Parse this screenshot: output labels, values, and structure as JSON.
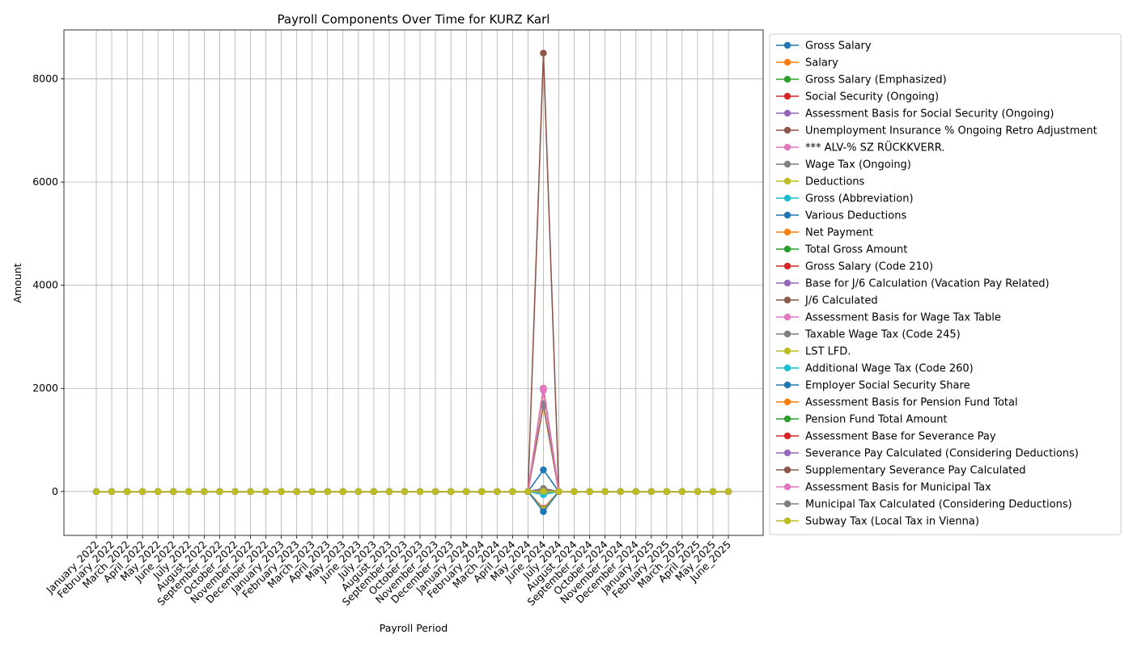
{
  "chart_data": {
    "type": "line",
    "title": "Payroll Components Over Time for KURZ Karl",
    "xlabel": "Payroll Period",
    "ylabel": "Amount",
    "ylim": [
      -850,
      8950
    ],
    "yticks": [
      0,
      2000,
      4000,
      6000,
      8000
    ],
    "grid": true,
    "legend_position": "outside-right",
    "categories": [
      "January_2022",
      "February_2022",
      "March_2022",
      "April_2022",
      "May_2022",
      "June_2022",
      "July_2022",
      "August_2022",
      "September_2022",
      "October_2022",
      "November_2022",
      "December_2022",
      "January_2023",
      "February_2023",
      "March_2023",
      "April_2023",
      "May_2023",
      "June_2023",
      "July_2023",
      "August_2023",
      "September_2023",
      "October_2023",
      "November_2023",
      "December_2023",
      "January_2024",
      "February_2024",
      "March_2024",
      "April_2024",
      "May_2024",
      "June_2024",
      "July_2024",
      "August_2024",
      "September_2024",
      "October_2024",
      "November_2024",
      "December_2024",
      "January_2025",
      "February_2025",
      "March_2025",
      "April_2025",
      "May_2025",
      "June_2025"
    ],
    "spike_category_index": 29,
    "series": [
      {
        "name": "Gross Salary",
        "color": "#1f77b4",
        "spike": 2000
      },
      {
        "name": "Salary",
        "color": "#ff7f0e",
        "spike": 2000
      },
      {
        "name": "Gross Salary (Emphasized)",
        "color": "#2ca02c",
        "spike": 2000
      },
      {
        "name": "Social Security (Ongoing)",
        "color": "#d62728",
        "spike": -330
      },
      {
        "name": "Assessment Basis for Social Security (Ongoing)",
        "color": "#9467bd",
        "spike": 2000
      },
      {
        "name": "Unemployment Insurance % Ongoing Retro Adjustment",
        "color": "#8c564b",
        "spike": 0
      },
      {
        "name": "*** ALV-% SZ RÜCKKVERR.",
        "color": "#e377c2",
        "spike": 0
      },
      {
        "name": "Wage Tax (Ongoing)",
        "color": "#7f7f7f",
        "spike": -20
      },
      {
        "name": "Deductions",
        "color": "#bcbd22",
        "spike": -350
      },
      {
        "name": "Gross (Abbreviation)",
        "color": "#17becf",
        "spike": 2000
      },
      {
        "name": "Various Deductions",
        "color": "#1f77b4",
        "spike": -390
      },
      {
        "name": "Net Payment",
        "color": "#ff7f0e",
        "spike": 1650
      },
      {
        "name": "Total Gross Amount",
        "color": "#2ca02c",
        "spike": 2000
      },
      {
        "name": "Gross Salary (Code 210)",
        "color": "#d62728",
        "spike": 2000
      },
      {
        "name": "Base for J/6 Calculation (Vacation Pay Related)",
        "color": "#9467bd",
        "spike": 2000
      },
      {
        "name": "J/6 Calculated",
        "color": "#8c564b",
        "spike": 8500
      },
      {
        "name": "Assessment Basis for Wage Tax Table",
        "color": "#e377c2",
        "spike": 1960
      },
      {
        "name": "Taxable Wage Tax (Code 245)",
        "color": "#7f7f7f",
        "spike": 1700
      },
      {
        "name": "LST LFD.",
        "color": "#bcbd22",
        "spike": 20
      },
      {
        "name": "Additional Wage Tax (Code 260)",
        "color": "#17becf",
        "spike": -60
      },
      {
        "name": "Employer Social Security Share",
        "color": "#1f77b4",
        "spike": 420
      },
      {
        "name": "Assessment Basis for Pension Fund Total",
        "color": "#ff7f0e",
        "spike": 2000
      },
      {
        "name": "Pension Fund Total Amount",
        "color": "#2ca02c",
        "spike": 30
      },
      {
        "name": "Assessment Base for Severance Pay",
        "color": "#d62728",
        "spike": 2000
      },
      {
        "name": "Severance Pay Calculated (Considering Deductions)",
        "color": "#9467bd",
        "spike": 30
      },
      {
        "name": "Supplementary Severance Pay Calculated",
        "color": "#8c564b",
        "spike": 50
      },
      {
        "name": "Assessment Basis for Municipal Tax",
        "color": "#e377c2",
        "spike": 2000
      },
      {
        "name": "Municipal Tax Calculated (Considering Deductions)",
        "color": "#7f7f7f",
        "spike": 60
      },
      {
        "name": "Subway Tax (Local Tax in Vienna)",
        "color": "#bcbd22",
        "spike": 2
      }
    ]
  }
}
